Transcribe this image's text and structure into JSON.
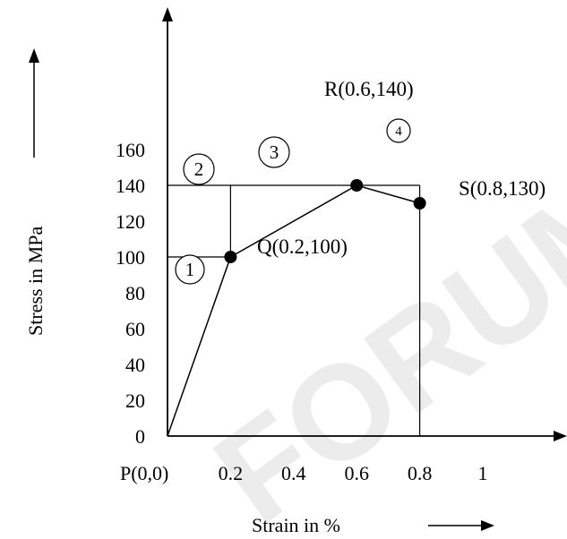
{
  "chart_data": {
    "type": "line",
    "x_tick_labels": [
      "0.2",
      "0.4",
      "0.6",
      "0.8",
      "1"
    ],
    "y_tick_labels": [
      "0",
      "20",
      "40",
      "60",
      "80",
      "100",
      "120",
      "140",
      "160"
    ],
    "origin_label": "P(0,0)",
    "xlabel": "Strain in %",
    "ylabel": "Stress in MPa",
    "xlim": [
      0,
      1.15
    ],
    "ylim": [
      0,
      170
    ],
    "series": [
      {
        "x": [
          0,
          0.2,
          0.6,
          0.8
        ],
        "y": [
          0,
          100,
          140,
          130
        ],
        "points": [
          {
            "x": 0,
            "y": 0,
            "label": "P(0,0)",
            "marker": false
          },
          {
            "x": 0.2,
            "y": 100,
            "label": "Q(0.2,100)",
            "marker": true
          },
          {
            "x": 0.6,
            "y": 140,
            "label": "R(0.6,140)",
            "marker": true
          },
          {
            "x": 0.8,
            "y": 130,
            "label": "S(0.8,130)",
            "marker": true
          }
        ]
      }
    ],
    "regions": [
      {
        "label": "1",
        "x": 0.12,
        "y": 82
      },
      {
        "label": "2",
        "x": 0.1,
        "y": 122
      },
      {
        "label": "3",
        "x": 0.34,
        "y": 126
      },
      {
        "label": "4",
        "x": 0.72,
        "y": 136
      }
    ],
    "guide_lines": [
      {
        "points": [
          [
            0,
            100
          ],
          [
            0.2,
            100
          ]
        ]
      },
      {
        "points": [
          [
            0.2,
            100
          ],
          [
            0.2,
            140
          ]
        ]
      },
      {
        "points": [
          [
            0,
            140
          ],
          [
            0.8,
            140
          ]
        ]
      },
      {
        "points": [
          [
            0.8,
            140
          ],
          [
            0.8,
            0
          ]
        ]
      }
    ],
    "grid": false,
    "watermark": "FORUM"
  }
}
